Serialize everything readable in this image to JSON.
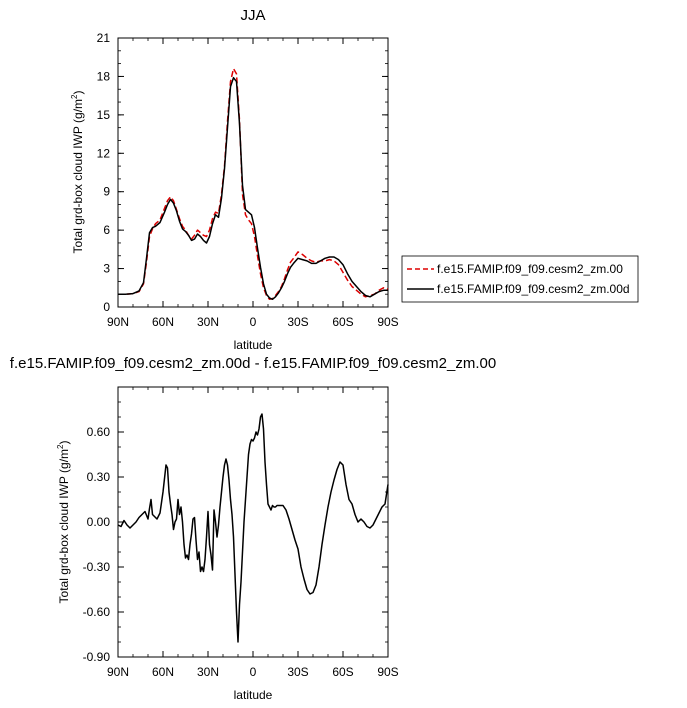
{
  "chart_data": [
    {
      "type": "line",
      "title": "JJA",
      "xlabel": "latitude",
      "ylabel": "Total grd-box cloud IWP (g/m",
      "ylabel_sup": "2",
      "ylabel_close": ")",
      "xlim": [
        90,
        -90
      ],
      "ylim": [
        0,
        21
      ],
      "xticks": [
        90,
        60,
        30,
        0,
        -30,
        -60,
        -90
      ],
      "xtick_labels": [
        "90N",
        "60N",
        "30N",
        "0",
        "30S",
        "60S",
        "90S"
      ],
      "yticks": [
        0,
        3,
        6,
        9,
        12,
        15,
        18,
        21
      ],
      "ytick_labels": [
        "0",
        "3",
        "6",
        "9",
        "12",
        "15",
        "18",
        "21"
      ],
      "series": [
        {
          "name": "f.e15.FAMIP.f09_f09.cesm2_zm.00",
          "color": "#dd0000",
          "dash": "dashed",
          "x": [
            90,
            85,
            80,
            76,
            73,
            71,
            69,
            67,
            65,
            62,
            59,
            57,
            55,
            53,
            51,
            49,
            47,
            45,
            43,
            41,
            39,
            37,
            35,
            33,
            31,
            29,
            27,
            25,
            23,
            21,
            19,
            17,
            15,
            13,
            11,
            9,
            7,
            5,
            3,
            1,
            -1,
            -3,
            -5,
            -7,
            -9,
            -11,
            -13,
            -15,
            -17,
            -19,
            -21,
            -23,
            -25,
            -27,
            -30,
            -33,
            -36,
            -39,
            -42,
            -45,
            -48,
            -51,
            -54,
            -57,
            -60,
            -63,
            -66,
            -69,
            -72,
            -75,
            -78,
            -81,
            -84,
            -87,
            -90
          ],
          "y": [
            1.0,
            1.0,
            1.05,
            1.2,
            1.8,
            3.5,
            5.5,
            6.1,
            6.5,
            6.8,
            7.7,
            8.3,
            8.6,
            8.3,
            7.6,
            6.9,
            6.3,
            6.0,
            5.6,
            5.3,
            5.6,
            6.0,
            5.8,
            5.6,
            5.5,
            6.0,
            6.9,
            7.4,
            7.3,
            8.8,
            11.0,
            14.5,
            17.6,
            18.6,
            18.2,
            14.6,
            8.8,
            7.2,
            6.8,
            6.5,
            5.5,
            4.0,
            2.6,
            1.5,
            0.9,
            0.6,
            0.65,
            0.9,
            1.2,
            1.6,
            2.2,
            2.9,
            3.5,
            3.8,
            4.3,
            4.1,
            3.8,
            3.6,
            3.5,
            3.6,
            3.6,
            3.7,
            3.6,
            3.3,
            2.7,
            2.1,
            1.6,
            1.3,
            1.0,
            0.8,
            0.9,
            1.0,
            1.3,
            1.5,
            1.4
          ]
        },
        {
          "name": "f.e15.FAMIP.f09_f09.cesm2_zm.00d",
          "color": "#000000",
          "dash": "solid",
          "x": [
            90,
            85,
            80,
            76,
            73,
            71,
            69,
            67,
            65,
            62,
            59,
            57,
            55,
            53,
            51,
            49,
            47,
            45,
            43,
            41,
            39,
            37,
            35,
            33,
            31,
            29,
            27,
            25,
            23,
            21,
            19,
            17,
            15,
            13,
            11,
            9,
            7,
            5,
            3,
            1,
            -1,
            -3,
            -5,
            -7,
            -9,
            -11,
            -13,
            -15,
            -17,
            -19,
            -21,
            -23,
            -25,
            -27,
            -30,
            -33,
            -36,
            -39,
            -42,
            -45,
            -48,
            -51,
            -54,
            -57,
            -60,
            -63,
            -66,
            -69,
            -72,
            -75,
            -78,
            -81,
            -84,
            -87,
            -90
          ],
          "y": [
            1.0,
            1.0,
            1.05,
            1.25,
            1.9,
            3.8,
            5.8,
            6.2,
            6.3,
            6.6,
            7.4,
            8.0,
            8.4,
            8.1,
            7.5,
            6.7,
            6.1,
            5.9,
            5.6,
            5.2,
            5.3,
            5.7,
            5.5,
            5.2,
            5.0,
            5.5,
            6.5,
            7.2,
            7.0,
            8.5,
            10.8,
            14.0,
            17.2,
            17.9,
            17.6,
            14.3,
            9.5,
            7.6,
            7.4,
            7.2,
            6.2,
            4.6,
            3.1,
            1.8,
            1.0,
            0.7,
            0.6,
            0.8,
            1.1,
            1.5,
            2.0,
            2.6,
            3.1,
            3.4,
            3.8,
            3.7,
            3.6,
            3.4,
            3.4,
            3.6,
            3.8,
            3.9,
            3.9,
            3.7,
            3.3,
            2.6,
            2.0,
            1.6,
            1.2,
            0.9,
            0.8,
            1.0,
            1.2,
            1.3,
            1.3
          ]
        }
      ]
    },
    {
      "type": "line",
      "title": "f.e15.FAMIP.f09_f09.cesm2_zm.00d - f.e15.FAMIP.f09_f09.cesm2_zm.00",
      "xlabel": "latitude",
      "ylabel": "Total grd-box cloud IWP (g/m",
      "ylabel_sup": "2",
      "ylabel_close": ")",
      "xlim": [
        90,
        -90
      ],
      "ylim": [
        -0.9,
        0.9
      ],
      "xticks": [
        90,
        60,
        30,
        0,
        -30,
        -60,
        -90
      ],
      "xtick_labels": [
        "90N",
        "60N",
        "30N",
        "0",
        "30S",
        "60S",
        "90S"
      ],
      "yticks": [
        -0.9,
        -0.6,
        -0.3,
        0,
        0.3,
        0.6
      ],
      "ytick_labels": [
        "-0.90",
        "-0.60",
        "-0.30",
        "0.00",
        "0.30",
        "0.60"
      ],
      "series": [
        {
          "name": "",
          "color": "#000000",
          "dash": "solid",
          "x": [
            90,
            88,
            86,
            84,
            82,
            80,
            78,
            76,
            74,
            72,
            70,
            69,
            68,
            67,
            66,
            64,
            62,
            60,
            58,
            57,
            56,
            55,
            54,
            53,
            52,
            51,
            50,
            49,
            48,
            47,
            46,
            45,
            44,
            43,
            42,
            41,
            40,
            39,
            38,
            37,
            36,
            35,
            34,
            33,
            32,
            31,
            30,
            29,
            28,
            27,
            26,
            25,
            24,
            23,
            22,
            21,
            20,
            19,
            18,
            17,
            16,
            15,
            14,
            13,
            12,
            11,
            10,
            9,
            8,
            7,
            6,
            5,
            4,
            3,
            2,
            1,
            0,
            -1,
            -2,
            -3,
            -4,
            -5,
            -6,
            -7,
            -8,
            -9,
            -10,
            -11,
            -12,
            -13,
            -14,
            -15,
            -16,
            -18,
            -20,
            -22,
            -24,
            -26,
            -28,
            -30,
            -32,
            -34,
            -36,
            -38,
            -40,
            -42,
            -44,
            -46,
            -48,
            -50,
            -52,
            -54,
            -56,
            -58,
            -60,
            -62,
            -64,
            -66,
            -68,
            -70,
            -72,
            -74,
            -76,
            -78,
            -80,
            -82,
            -84,
            -86,
            -88,
            -90
          ],
          "y": [
            -0.02,
            -0.03,
            0.01,
            -0.02,
            -0.04,
            -0.02,
            0.0,
            0.03,
            0.05,
            0.07,
            0.02,
            0.09,
            0.15,
            0.05,
            0.04,
            0.02,
            0.06,
            0.2,
            0.38,
            0.36,
            0.2,
            0.12,
            0.05,
            -0.05,
            0.0,
            0.02,
            0.15,
            0.05,
            0.1,
            0.0,
            -0.15,
            -0.24,
            -0.22,
            -0.25,
            -0.15,
            -0.08,
            0.02,
            0.03,
            -0.12,
            -0.25,
            -0.2,
            -0.33,
            -0.3,
            -0.33,
            -0.25,
            -0.1,
            0.07,
            -0.15,
            -0.22,
            -0.32,
            0.08,
            0.0,
            -0.1,
            -0.02,
            0.1,
            0.2,
            0.3,
            0.38,
            0.42,
            0.38,
            0.28,
            0.15,
            0.05,
            -0.1,
            -0.35,
            -0.6,
            -0.8,
            -0.55,
            -0.4,
            -0.2,
            0.0,
            0.15,
            0.3,
            0.45,
            0.52,
            0.55,
            0.54,
            0.56,
            0.6,
            0.58,
            0.62,
            0.7,
            0.72,
            0.62,
            0.4,
            0.25,
            0.12,
            0.1,
            0.08,
            0.11,
            0.1,
            0.1,
            0.11,
            0.11,
            0.11,
            0.08,
            0.02,
            -0.05,
            -0.12,
            -0.18,
            -0.3,
            -0.38,
            -0.45,
            -0.48,
            -0.47,
            -0.42,
            -0.3,
            -0.15,
            -0.02,
            0.1,
            0.2,
            0.28,
            0.35,
            0.4,
            0.38,
            0.25,
            0.15,
            0.12,
            0.05,
            0.0,
            0.02,
            0.0,
            -0.03,
            -0.04,
            -0.02,
            0.02,
            0.06,
            0.1,
            0.12,
            0.25
          ]
        }
      ]
    }
  ]
}
